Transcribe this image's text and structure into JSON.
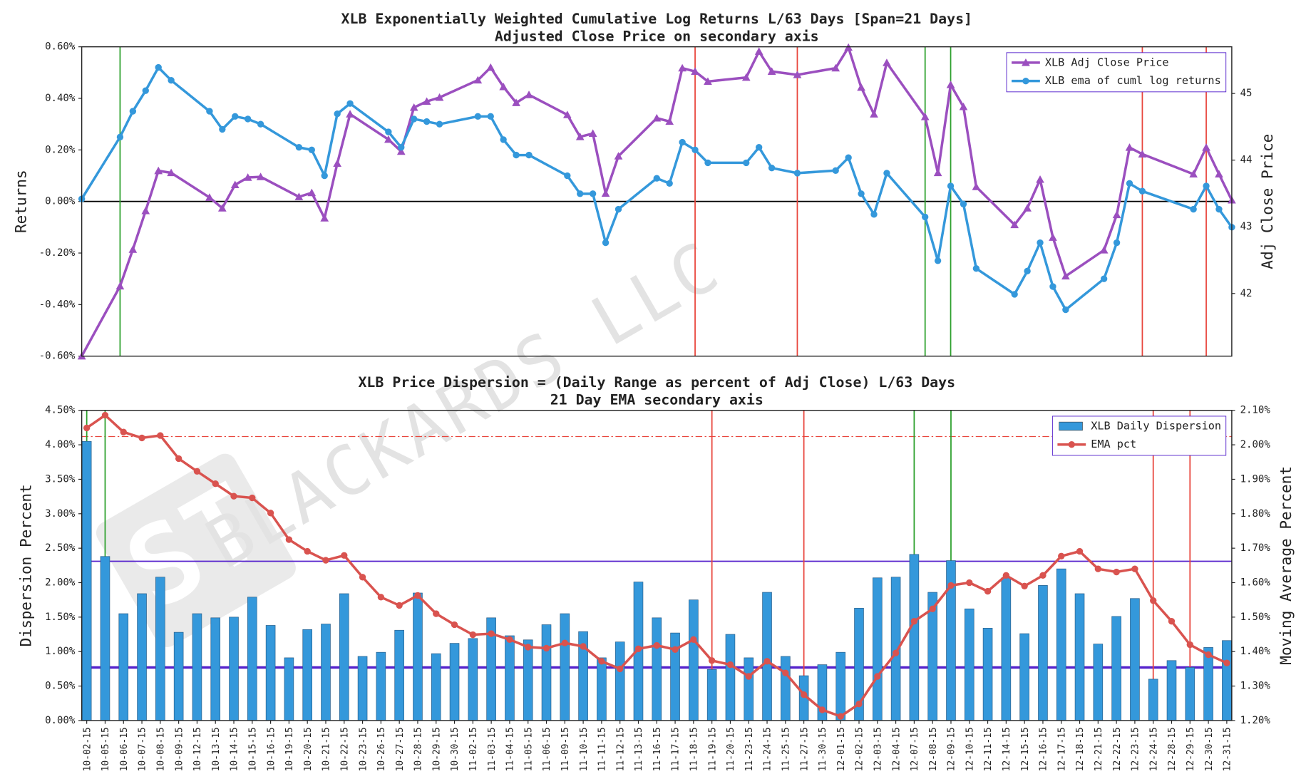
{
  "chart_data": [
    {
      "type": "line",
      "title": "XLB Exponentially Weighted Cumulative Log Returns L/63 Days [Span=21 Days]",
      "subtitle": "Adjusted Close Price on secondary axis",
      "ylabel": "Returns",
      "y2label": "Adj Close Price",
      "x": [
        "10-02-15",
        "10-05-15",
        "10-06-15",
        "10-07-15",
        "10-08-15",
        "10-09-15",
        "10-12-15",
        "10-13-15",
        "10-14-15",
        "10-15-15",
        "10-16-15",
        "10-19-15",
        "10-20-15",
        "10-21-15",
        "10-22-15",
        "10-23-15",
        "10-26-15",
        "10-27-15",
        "10-28-15",
        "10-29-15",
        "10-30-15",
        "11-02-15",
        "11-03-15",
        "11-04-15",
        "11-05-15",
        "11-06-15",
        "11-09-15",
        "11-10-15",
        "11-11-15",
        "11-12-15",
        "11-13-15",
        "11-16-15",
        "11-17-15",
        "11-18-15",
        "11-19-15",
        "11-20-15",
        "11-23-15",
        "11-24-15",
        "11-25-15",
        "11-27-15",
        "11-30-15",
        "12-01-15",
        "12-02-15",
        "12-03-15",
        "12-04-15",
        "12-07-15",
        "12-08-15",
        "12-09-15",
        "12-10-15",
        "12-11-15",
        "12-14-15",
        "12-15-15",
        "12-16-15",
        "12-17-15",
        "12-18-15",
        "12-21-15",
        "12-22-15",
        "12-23-15",
        "12-24-15",
        "12-28-15",
        "12-29-15",
        "12-30-15",
        "12-31-15"
      ],
      "series": [
        {
          "name": "XLB Adj Close Price",
          "color": "#9b4fbf",
          "marker": "triangle",
          "axis": "y2",
          "values": [
            41.06,
            42.11,
            42.66,
            43.24,
            43.84,
            43.81,
            43.44,
            43.28,
            43.63,
            43.74,
            43.75,
            43.45,
            43.51,
            43.13,
            43.95,
            44.69,
            44.31,
            44.13,
            44.79,
            44.88,
            44.94,
            45.2,
            45.39,
            45.1,
            44.86,
            44.98,
            44.68,
            44.35,
            44.4,
            43.5,
            44.06,
            44.63,
            44.58,
            45.38,
            45.33,
            45.18,
            45.24,
            45.63,
            45.33,
            45.28,
            45.38,
            45.69,
            45.09,
            44.69,
            45.46,
            44.65,
            43.81,
            45.13,
            44.8,
            43.6,
            43.03,
            43.28,
            43.71,
            42.84,
            42.26,
            42.65,
            43.18,
            44.19,
            44.09,
            43.79,
            44.19,
            43.79,
            43.4
          ]
        },
        {
          "name": "XLB ema of cuml log returns",
          "color": "#3498db",
          "marker": "circle",
          "values": [
            0.01,
            0.25,
            0.35,
            0.43,
            0.52,
            0.47,
            0.35,
            0.28,
            0.33,
            0.32,
            0.3,
            0.21,
            0.2,
            0.1,
            0.34,
            0.38,
            0.27,
            0.21,
            0.32,
            0.31,
            0.3,
            0.33,
            0.33,
            0.24,
            0.18,
            0.18,
            0.1,
            0.03,
            0.03,
            -0.16,
            -0.03,
            0.09,
            0.07,
            0.23,
            0.2,
            0.15,
            0.15,
            0.21,
            0.13,
            0.11,
            0.12,
            0.17,
            0.03,
            -0.05,
            0.11,
            -0.06,
            -0.23,
            0.06,
            -0.01,
            -0.26,
            -0.36,
            -0.27,
            -0.16,
            -0.33,
            -0.42,
            -0.3,
            -0.16,
            0.07,
            0.04,
            -0.03,
            0.06,
            -0.03,
            -0.1
          ]
        }
      ],
      "ylim": [
        -0.6,
        0.6
      ],
      "yticks": [
        {
          "value": -0.6,
          "label": "-0.60%"
        },
        {
          "value": -0.4,
          "label": "-0.40%"
        },
        {
          "value": -0.2,
          "label": "-0.20%"
        },
        {
          "value": 0,
          "label": "0.00%"
        },
        {
          "value": 0.2,
          "label": "0.20%"
        },
        {
          "value": 0.4,
          "label": "0.40%"
        },
        {
          "value": 0.6,
          "label": "0.60%"
        }
      ],
      "y2lim": [
        41.06,
        45.7
      ],
      "y2ticks": [
        42,
        43,
        44,
        45
      ],
      "hlines": [
        {
          "value": 0,
          "color": "#000000"
        }
      ],
      "vlines": [
        {
          "x": "10-05-15",
          "color": "#2ca02c"
        },
        {
          "x": "11-19-15",
          "color": "#e8453c"
        },
        {
          "x": "11-27-15",
          "color": "#e8453c"
        },
        {
          "x": "12-07-15",
          "color": "#2ca02c"
        },
        {
          "x": "12-09-15",
          "color": "#2ca02c"
        },
        {
          "x": "12-24-15",
          "color": "#e8453c"
        },
        {
          "x": "12-29-15",
          "color": "#e8453c"
        }
      ],
      "legend": "upper right",
      "watermark": "BLACKARDS LLC"
    },
    {
      "type": "combo",
      "title": "XLB Price Dispersion = (Daily Range as percent of Adj Close) L/63 Days",
      "subtitle": "21 Day EMA secondary axis",
      "ylabel": "Dispersion Percent",
      "y2label": "Moving Average Percent",
      "categories": [
        "10-02-15",
        "10-05-15",
        "10-06-15",
        "10-07-15",
        "10-08-15",
        "10-09-15",
        "10-12-15",
        "10-13-15",
        "10-14-15",
        "10-15-15",
        "10-16-15",
        "10-19-15",
        "10-20-15",
        "10-21-15",
        "10-22-15",
        "10-23-15",
        "10-26-15",
        "10-27-15",
        "10-28-15",
        "10-29-15",
        "10-30-15",
        "11-02-15",
        "11-03-15",
        "11-04-15",
        "11-05-15",
        "11-06-15",
        "11-09-15",
        "11-10-15",
        "11-11-15",
        "11-12-15",
        "11-13-15",
        "11-16-15",
        "11-17-15",
        "11-18-15",
        "11-19-15",
        "11-20-15",
        "11-23-15",
        "11-24-15",
        "11-25-15",
        "11-27-15",
        "11-30-15",
        "12-01-15",
        "12-02-15",
        "12-03-15",
        "12-04-15",
        "12-07-15",
        "12-08-15",
        "12-09-15",
        "12-10-15",
        "12-11-15",
        "12-14-15",
        "12-15-15",
        "12-16-15",
        "12-17-15",
        "12-18-15",
        "12-21-15",
        "12-22-15",
        "12-23-15",
        "12-24-15",
        "12-28-15",
        "12-29-15",
        "12-30-15",
        "12-31-15"
      ],
      "series": [
        {
          "name": "XLB Daily Dispersion",
          "type": "bar",
          "color": "#3498db",
          "values": [
            4.05,
            2.38,
            1.55,
            1.84,
            2.08,
            1.28,
            1.55,
            1.49,
            1.5,
            1.79,
            1.38,
            0.91,
            1.32,
            1.4,
            1.84,
            0.93,
            0.99,
            1.31,
            1.85,
            0.97,
            1.12,
            1.19,
            1.49,
            1.23,
            1.17,
            1.39,
            1.55,
            1.29,
            0.91,
            1.14,
            2.01,
            1.49,
            1.27,
            1.75,
            0.74,
            1.25,
            0.91,
            1.86,
            0.93,
            0.65,
            0.81,
            0.99,
            1.63,
            2.07,
            2.08,
            2.41,
            1.86,
            2.32,
            1.62,
            1.34,
            2.07,
            1.26,
            1.96,
            2.2,
            1.84,
            1.11,
            1.51,
            1.77,
            0.6,
            0.87,
            0.77,
            1.06,
            1.16
          ]
        },
        {
          "name": "EMA pct",
          "type": "line",
          "color": "#d9534f",
          "marker": "circle",
          "axis": "y2",
          "values": [
            2.049,
            2.086,
            2.037,
            2.02,
            2.027,
            1.96,
            1.923,
            1.887,
            1.851,
            1.846,
            1.802,
            1.725,
            1.691,
            1.665,
            1.679,
            1.616,
            1.558,
            1.534,
            1.563,
            1.51,
            1.478,
            1.449,
            1.452,
            1.435,
            1.413,
            1.41,
            1.425,
            1.415,
            1.372,
            1.35,
            1.408,
            1.418,
            1.406,
            1.435,
            1.374,
            1.362,
            1.328,
            1.372,
            1.338,
            1.275,
            1.231,
            1.212,
            1.248,
            1.328,
            1.396,
            1.488,
            1.524,
            1.592,
            1.6,
            1.575,
            1.621,
            1.59,
            1.621,
            1.677,
            1.691,
            1.64,
            1.631,
            1.64,
            1.548,
            1.488,
            1.42,
            1.391,
            1.367
          ]
        }
      ],
      "ylim": [
        0,
        4.5
      ],
      "yticks": [
        {
          "value": 0,
          "label": "0.00%"
        },
        {
          "value": 0.5,
          "label": "0.50%"
        },
        {
          "value": 1,
          "label": "1.00%"
        },
        {
          "value": 1.5,
          "label": "1.50%"
        },
        {
          "value": 2,
          "label": "2.00%"
        },
        {
          "value": 2.5,
          "label": "2.50%"
        },
        {
          "value": 3,
          "label": "3.00%"
        },
        {
          "value": 3.5,
          "label": "3.50%"
        },
        {
          "value": 4,
          "label": "4.00%"
        },
        {
          "value": 4.5,
          "label": "4.50%"
        }
      ],
      "y2lim": [
        1.2,
        2.1
      ],
      "y2ticks": [
        {
          "value": 1.2,
          "label": "1.20%"
        },
        {
          "value": 1.3,
          "label": "1.30%"
        },
        {
          "value": 1.4,
          "label": "1.40%"
        },
        {
          "value": 1.5,
          "label": "1.50%"
        },
        {
          "value": 1.6,
          "label": "1.60%"
        },
        {
          "value": 1.7,
          "label": "1.70%"
        },
        {
          "value": 1.8,
          "label": "1.80%"
        },
        {
          "value": 1.9,
          "label": "1.90%"
        },
        {
          "value": 2.0,
          "label": "2.00%"
        },
        {
          "value": 2.1,
          "label": "2.10%"
        }
      ],
      "hlines": [
        {
          "value": 2.31,
          "color": "#5522cc",
          "width": 1.5
        },
        {
          "value": 0.77,
          "color": "#5522cc",
          "width": 3
        },
        {
          "value": 4.12,
          "color": "#e8453c",
          "width": 1,
          "dash": "dashdot"
        }
      ],
      "vlines": [
        {
          "x": "10-02-15",
          "color": "#2ca02c"
        },
        {
          "x": "10-05-15",
          "color": "#2ca02c"
        },
        {
          "x": "11-19-15",
          "color": "#e8453c"
        },
        {
          "x": "11-27-15",
          "color": "#e8453c"
        },
        {
          "x": "12-07-15",
          "color": "#2ca02c"
        },
        {
          "x": "12-09-15",
          "color": "#2ca02c"
        },
        {
          "x": "12-24-15",
          "color": "#e8453c"
        },
        {
          "x": "12-29-15",
          "color": "#e8453c"
        }
      ],
      "legend": "upper right"
    }
  ]
}
